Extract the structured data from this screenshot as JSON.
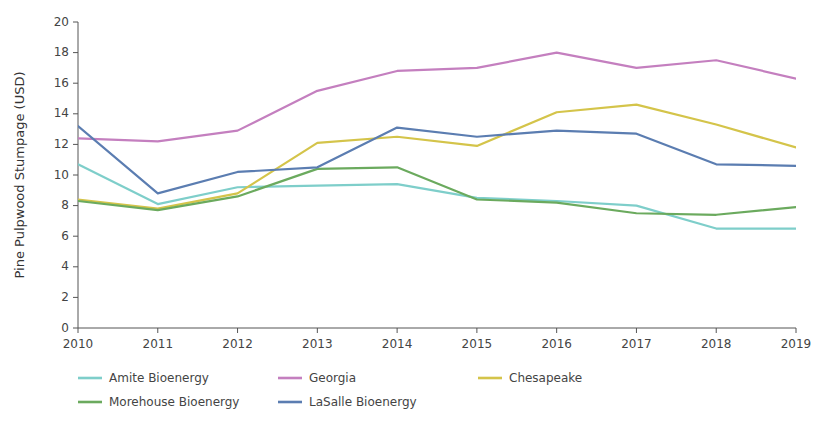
{
  "chart_data": {
    "type": "line",
    "y_label": "Pine Pulpwood Stumpage (USD)",
    "x": [
      2010,
      2011,
      2012,
      2013,
      2014,
      2015,
      2016,
      2017,
      2018,
      2019
    ],
    "xlim": [
      2010,
      2019
    ],
    "xticks": [
      2010,
      2011,
      2012,
      2013,
      2014,
      2015,
      2016,
      2017,
      2018,
      2019
    ],
    "ylim": [
      0,
      20
    ],
    "yticks": [
      0,
      2,
      4,
      6,
      8,
      10,
      12,
      14,
      16,
      18,
      20
    ],
    "grid": false,
    "legend": "bottom",
    "series": [
      {
        "name": "Amite Bioenergy",
        "color": "#7ECECA",
        "values": [
          10.7,
          8.1,
          9.2,
          9.3,
          9.4,
          8.5,
          8.3,
          8.0,
          6.5,
          6.5
        ]
      },
      {
        "name": "Georgia",
        "color": "#C47FBF",
        "values": [
          12.4,
          12.2,
          12.9,
          15.5,
          16.8,
          17.0,
          18.0,
          17.0,
          17.5,
          16.3
        ]
      },
      {
        "name": "Chesapeake",
        "color": "#D4C44A",
        "values": [
          8.4,
          7.8,
          8.8,
          12.1,
          12.5,
          11.9,
          14.1,
          14.6,
          13.3,
          11.8
        ]
      },
      {
        "name": "Morehouse Bioenergy",
        "color": "#6BAA5E",
        "values": [
          8.3,
          7.7,
          8.6,
          10.4,
          10.5,
          8.4,
          8.2,
          7.5,
          7.4,
          7.9
        ]
      },
      {
        "name": "LaSalle Bioenergy",
        "color": "#5B7DB1",
        "values": [
          13.2,
          8.8,
          10.2,
          10.5,
          13.1,
          12.5,
          12.9,
          12.7,
          10.7,
          10.6
        ]
      }
    ]
  }
}
